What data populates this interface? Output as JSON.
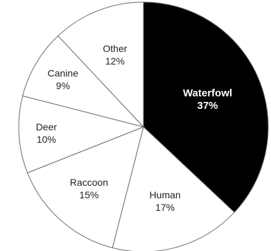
{
  "chart_data": {
    "type": "pie",
    "slices": [
      {
        "category": "Waterfowl",
        "percent_label": "37%",
        "value": 37,
        "color": "#000000"
      },
      {
        "category": "Human",
        "percent_label": "17%",
        "value": 17,
        "color": "#ffffff"
      },
      {
        "category": "Raccoon",
        "percent_label": "15%",
        "value": 15,
        "color": "#ffffff"
      },
      {
        "category": "Deer",
        "percent_label": "10%",
        "value": 10,
        "color": "#ffffff"
      },
      {
        "category": "Canine",
        "percent_label": "9%",
        "value": 9,
        "color": "#ffffff"
      },
      {
        "category": "Other",
        "percent_label": "12%",
        "value": 12,
        "color": "#ffffff"
      }
    ],
    "start_angle": "top, clockwise"
  }
}
